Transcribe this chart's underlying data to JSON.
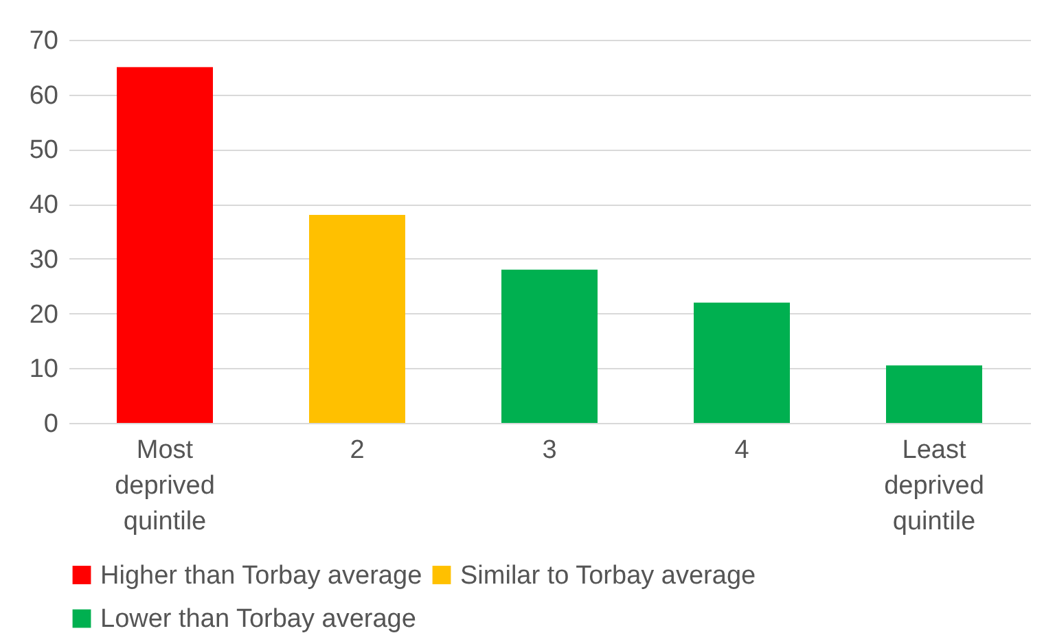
{
  "chart_data": {
    "type": "bar",
    "stacked": true,
    "categories": [
      "Most deprived quintile",
      "2",
      "3",
      "4",
      "Least deprived quintile"
    ],
    "series": [
      {
        "name": "Higher than Torbay average",
        "color": "#ff0000",
        "values": [
          65,
          null,
          null,
          null,
          null
        ]
      },
      {
        "name": "Similar to Torbay average",
        "color": "#ffc000",
        "values": [
          null,
          38,
          null,
          null,
          null
        ]
      },
      {
        "name": "Lower than Torbay average",
        "color": "#00b050",
        "values": [
          null,
          null,
          28,
          22,
          10.5
        ]
      }
    ],
    "ylim": [
      0,
      70
    ],
    "yticks": [
      0,
      10,
      20,
      30,
      40,
      50,
      60,
      70
    ],
    "grid": "y",
    "legend": "bottom"
  }
}
